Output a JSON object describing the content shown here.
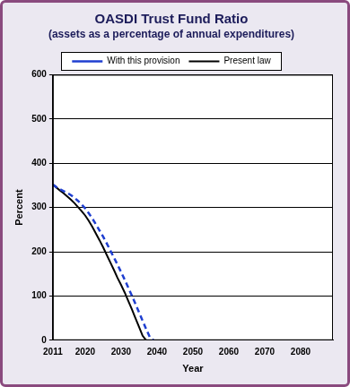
{
  "chart_data": {
    "type": "line",
    "title": "OASDI Trust Fund Ratio",
    "subtitle": "(assets as a percentage of annual expenditures)",
    "x_label": "Year",
    "y_label": "Percent",
    "x": [
      2011,
      2012,
      2013,
      2014,
      2015,
      2016,
      2017,
      2018,
      2019,
      2020,
      2021,
      2022,
      2023,
      2024,
      2025,
      2026,
      2027,
      2028,
      2029,
      2030,
      2031,
      2032,
      2033,
      2034,
      2035,
      2036,
      2037,
      2038,
      2039
    ],
    "series": [
      {
        "name": "Present law",
        "color": "#000000",
        "line_style": "solid",
        "values": [
          352,
          345,
          338,
          332,
          325,
          318,
          310,
          301,
          292,
          282,
          270,
          256,
          241,
          226,
          210,
          193,
          176,
          159,
          141,
          125,
          108,
          89,
          70,
          50,
          30,
          10,
          0,
          null,
          null
        ]
      },
      {
        "name": "With this provision",
        "color": "#1f3fd0",
        "line_style": "dashed",
        "values": [
          352,
          346,
          341,
          337,
          333,
          328,
          322,
          315,
          307,
          298,
          287,
          275,
          262,
          248,
          234,
          219,
          203,
          187,
          171,
          154,
          137,
          119,
          101,
          82,
          63,
          44,
          25,
          7,
          0
        ]
      }
    ],
    "xlim": [
      2011,
      2089
    ],
    "xticks": [
      2011,
      2020,
      2030,
      2040,
      2050,
      2060,
      2070,
      2080
    ],
    "ylim": [
      0,
      600
    ],
    "yticks": [
      0,
      100,
      200,
      300,
      400,
      500,
      600
    ],
    "grid": true,
    "legend": "top"
  }
}
